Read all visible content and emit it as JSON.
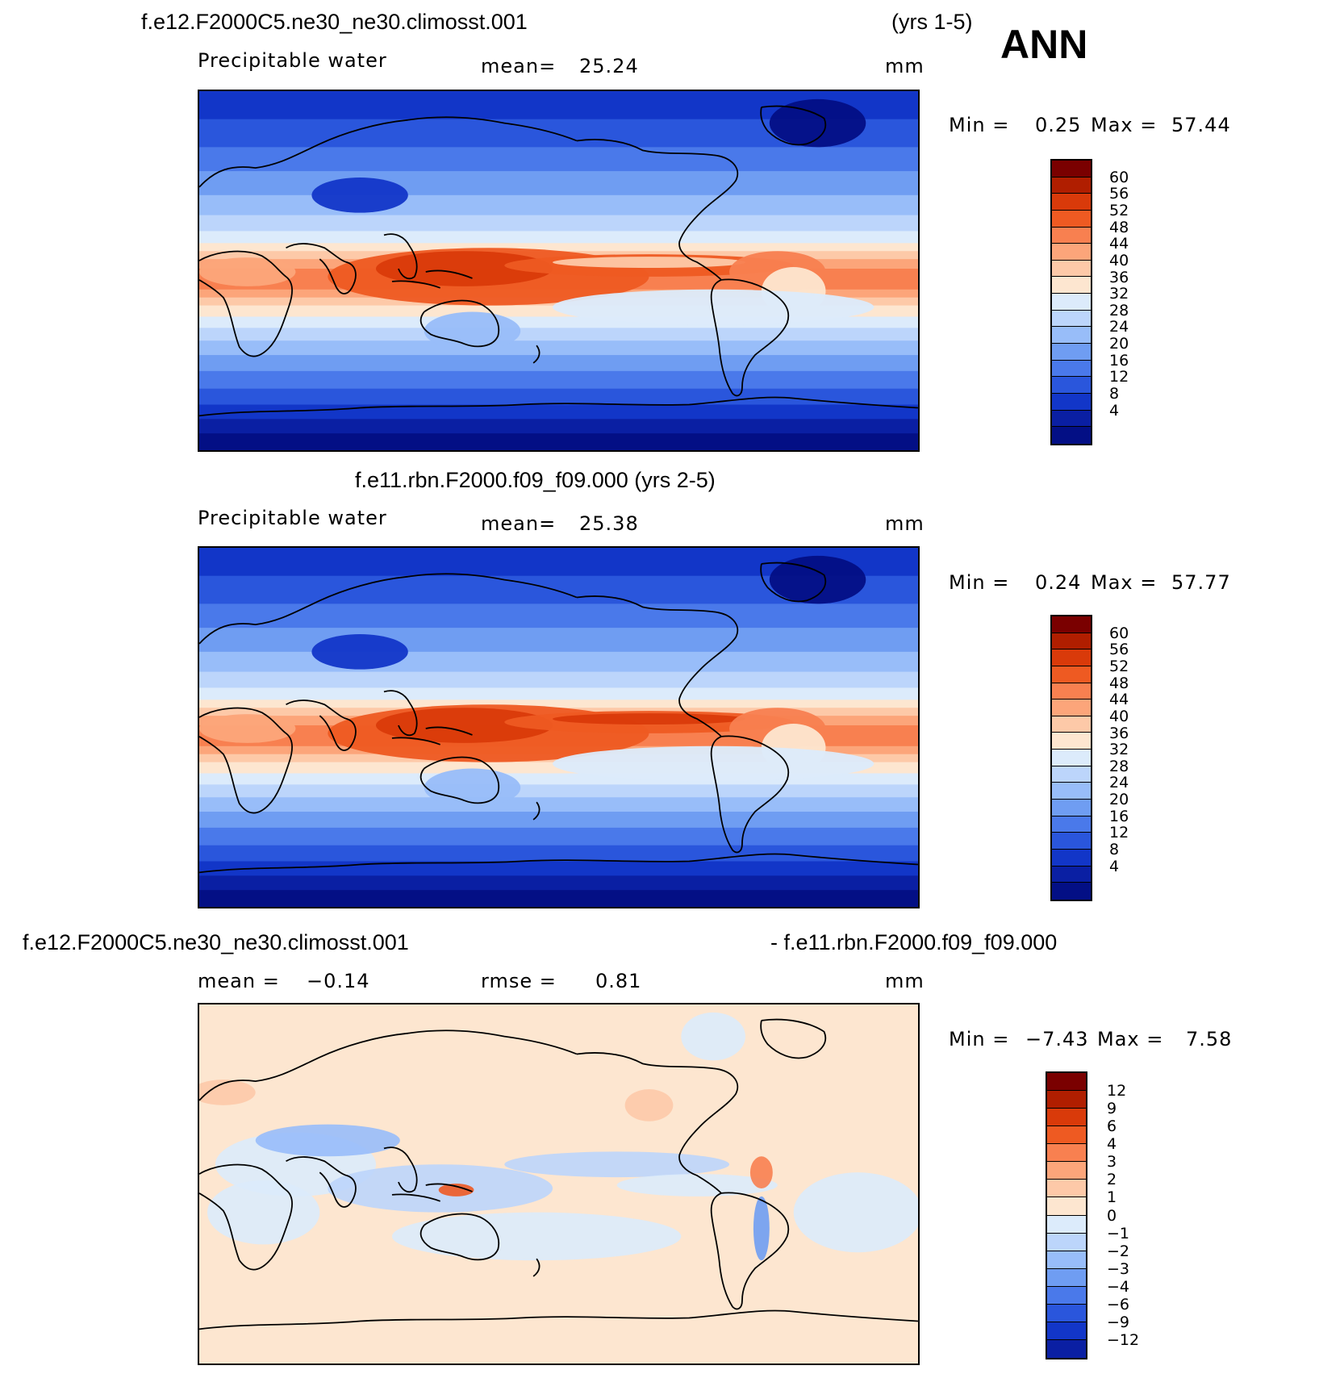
{
  "season": "ANN",
  "panels": [
    {
      "title_left": "f.e12.F2000C5.ne30_ne30.climosst.001",
      "title_right": "(yrs 1-5)",
      "var_label": "Precipitable  water",
      "stat1_label": "mean=",
      "stat1_value": "25.24",
      "units": "mm",
      "min_label": "Min  =",
      "min_value": "0.25",
      "max_label": "Max  =",
      "max_value": "57.44",
      "map_kind": "field",
      "cbar_labels": [
        "60",
        "56",
        "52",
        "48",
        "44",
        "40",
        "36",
        "32",
        "28",
        "24",
        "20",
        "16",
        "12",
        "8",
        "4"
      ]
    },
    {
      "title_center": "f.e11.rbn.F2000.f09_f09.000 (yrs 2-5)",
      "var_label": "Precipitable  water",
      "stat1_label": "mean=",
      "stat1_value": "25.38",
      "units": "mm",
      "min_label": "Min  =",
      "min_value": "0.24",
      "max_label": "Max  =",
      "max_value": "57.77",
      "map_kind": "field",
      "cbar_labels": [
        "60",
        "56",
        "52",
        "48",
        "44",
        "40",
        "36",
        "32",
        "28",
        "24",
        "20",
        "16",
        "12",
        "8",
        "4"
      ]
    },
    {
      "title_left": "f.e12.F2000C5.ne30_ne30.climosst.001",
      "title_right": "- f.e11.rbn.F2000.f09_f09.000",
      "stat1_label": "mean  =",
      "stat1_value": "−0.14",
      "stat2_label": "rmse  =",
      "stat2_value": "0.81",
      "units": "mm",
      "min_label": "Min  =",
      "min_value": "−7.43",
      "max_label": "Max  =",
      "max_value": "7.58",
      "map_kind": "diff",
      "cbar_labels": [
        "12",
        "9",
        "6",
        "4",
        "3",
        "2",
        "1",
        "0",
        "−1",
        "−2",
        "−3",
        "−4",
        "−6",
        "−9",
        "−12"
      ]
    }
  ],
  "colors": {
    "field_scale": [
      "#7a0000",
      "#b01e00",
      "#d93a0a",
      "#ee5a22",
      "#f88050",
      "#fca57a",
      "#fdc9a8",
      "#fde6d0",
      "#dcebfb",
      "#bcd5fb",
      "#98bdf9",
      "#6f9df2",
      "#4a79ea",
      "#2a56dc",
      "#1236c8",
      "#0a1fa3",
      "#030f85"
    ],
    "diff_scale": [
      "#7a0000",
      "#b01e00",
      "#d93a0a",
      "#ee5a22",
      "#f88050",
      "#fca57a",
      "#fdc9a8",
      "#fde6d0",
      "#dcebfb",
      "#bcd5fb",
      "#98bdf9",
      "#6f9df2",
      "#4a79ea",
      "#2a56dc",
      "#1236c8",
      "#0a1fa3"
    ],
    "coastline": "#000000"
  }
}
